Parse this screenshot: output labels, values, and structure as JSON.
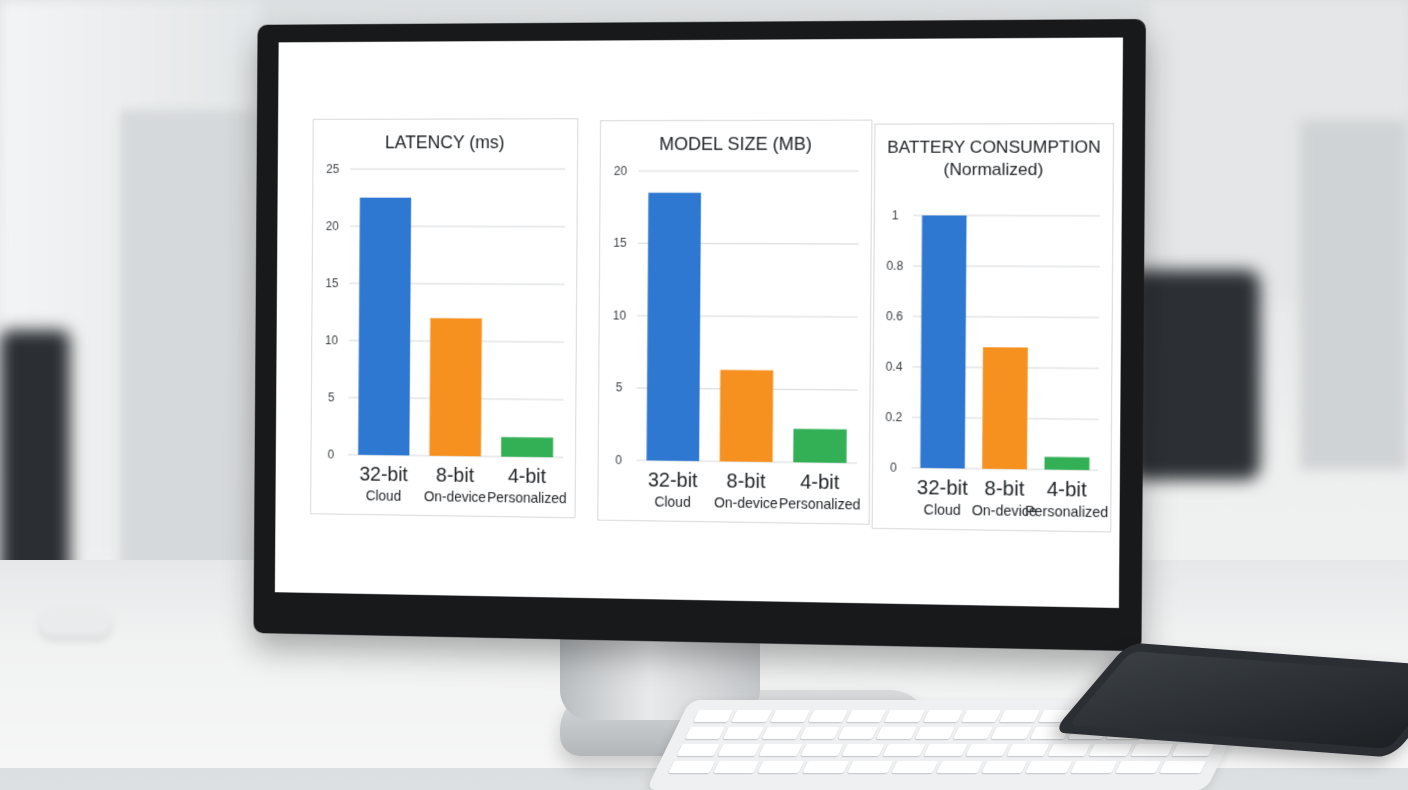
{
  "colors": {
    "blue": "#2f78d2",
    "orange": "#f6901e",
    "green": "#33b056"
  },
  "chart_data": [
    {
      "type": "bar",
      "title": "LATENCY (ms)",
      "subtitle": "",
      "categories": [
        "32-bit",
        "8-bit",
        "4-bit"
      ],
      "category_sublabels": [
        "Cloud",
        "On-device",
        "Personalized"
      ],
      "values": [
        22.5,
        12,
        1.7
      ],
      "bar_colors": [
        "#2f78d2",
        "#f6901e",
        "#33b056"
      ],
      "ylim": [
        0,
        25
      ],
      "yticks": [
        "0",
        "5",
        "10",
        "15",
        "20",
        "25"
      ],
      "grid": true
    },
    {
      "type": "bar",
      "title": "MODEL SIZE (MB)",
      "subtitle": "",
      "categories": [
        "32-bit",
        "8-bit",
        "4-bit"
      ],
      "category_sublabels": [
        "Cloud",
        "On-device",
        "Personalized"
      ],
      "values": [
        18.5,
        6.3,
        2.3
      ],
      "bar_colors": [
        "#2f78d2",
        "#f6901e",
        "#33b056"
      ],
      "ylim": [
        0,
        20
      ],
      "yticks": [
        "0",
        "5",
        "10",
        "15",
        "20"
      ],
      "grid": true
    },
    {
      "type": "bar",
      "title": "BATTERY CONSUMPTION",
      "subtitle": "(Normalized)",
      "categories": [
        "32-bit",
        "8-bit",
        "4-bit"
      ],
      "category_sublabels": [
        "Cloud",
        "On-device",
        "Personalized"
      ],
      "values": [
        1.0,
        0.48,
        0.05
      ],
      "bar_colors": [
        "#2f78d2",
        "#f6901e",
        "#33b056"
      ],
      "ylim": [
        0,
        1
      ],
      "yticks": [
        "0",
        "0.2",
        "0.4",
        "0.6",
        "0.8",
        "1"
      ],
      "grid": true
    }
  ]
}
